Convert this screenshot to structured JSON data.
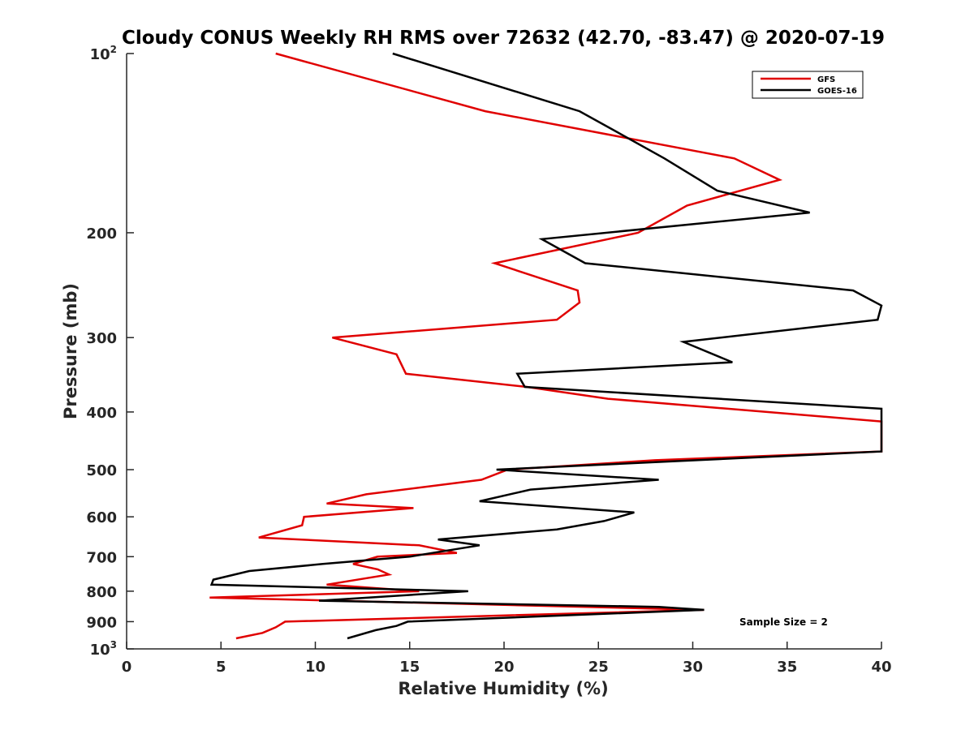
{
  "chart_data": {
    "type": "line",
    "title": "Cloudy CONUS Weekly RH RMS over 72632 (42.70, -83.47) @ 2020-07-19",
    "xlabel": "Relative Humidity (%)",
    "ylabel": "Pressure (mb)",
    "xlim": [
      0,
      40
    ],
    "ylim": [
      100,
      1000
    ],
    "yscale": "log",
    "y_reversed": true,
    "x_ticks": [
      "0",
      "5",
      "10",
      "15",
      "20",
      "25",
      "30",
      "35",
      "40"
    ],
    "y_ticks": [
      {
        "value": 100,
        "base": "10",
        "sup": "2"
      },
      {
        "value": 200,
        "label": "200"
      },
      {
        "value": 300,
        "label": "300"
      },
      {
        "value": 400,
        "label": "400"
      },
      {
        "value": 500,
        "label": "500"
      },
      {
        "value": 600,
        "label": "600"
      },
      {
        "value": 700,
        "label": "700"
      },
      {
        "value": 800,
        "label": "800"
      },
      {
        "value": 900,
        "label": "900"
      },
      {
        "value": 1000,
        "base": "10",
        "sup": "3"
      }
    ],
    "legend_position": "top-right",
    "annotation": "Sample Size = 2",
    "series": [
      {
        "name": "GFS",
        "color": "#e00000",
        "points": [
          [
            7.9,
            100
          ],
          [
            19.0,
            125
          ],
          [
            32.2,
            150
          ],
          [
            34.6,
            163
          ],
          [
            29.7,
            180
          ],
          [
            27.1,
            200
          ],
          [
            19.5,
            225
          ],
          [
            23.9,
            250
          ],
          [
            24.0,
            262
          ],
          [
            22.8,
            280
          ],
          [
            10.9,
            300
          ],
          [
            14.3,
            320
          ],
          [
            14.8,
            345
          ],
          [
            21.2,
            363
          ],
          [
            25.5,
            380
          ],
          [
            40.0,
            415
          ],
          [
            40.0,
            466
          ],
          [
            28.0,
            482
          ],
          [
            20.2,
            500
          ],
          [
            18.8,
            520
          ],
          [
            12.7,
            550
          ],
          [
            10.6,
            570
          ],
          [
            15.2,
            580
          ],
          [
            9.4,
            600
          ],
          [
            9.3,
            620
          ],
          [
            7.0,
            650
          ],
          [
            15.5,
            670
          ],
          [
            17.5,
            690
          ],
          [
            13.3,
            700
          ],
          [
            12.0,
            720
          ],
          [
            13.3,
            735
          ],
          [
            13.9,
            750
          ],
          [
            10.6,
            780
          ],
          [
            15.5,
            800
          ],
          [
            4.4,
            820
          ],
          [
            30.6,
            860
          ],
          [
            8.4,
            900
          ],
          [
            7.9,
            920
          ],
          [
            7.2,
            940
          ],
          [
            5.8,
            960
          ]
        ]
      },
      {
        "name": "GOES-16",
        "color": "#000000",
        "points": [
          [
            14.1,
            100
          ],
          [
            24.0,
            125
          ],
          [
            28.5,
            150
          ],
          [
            31.3,
            170
          ],
          [
            36.2,
            185
          ],
          [
            22.0,
            205
          ],
          [
            24.3,
            225
          ],
          [
            38.5,
            250
          ],
          [
            40.0,
            265
          ],
          [
            39.8,
            280
          ],
          [
            29.5,
            305
          ],
          [
            32.1,
            330
          ],
          [
            20.7,
            345
          ],
          [
            21.1,
            363
          ],
          [
            40.0,
            395
          ],
          [
            40.0,
            466
          ],
          [
            19.6,
            500
          ],
          [
            28.2,
            520
          ],
          [
            21.4,
            540
          ],
          [
            18.7,
            565
          ],
          [
            26.9,
            590
          ],
          [
            25.3,
            610
          ],
          [
            22.8,
            630
          ],
          [
            16.5,
            655
          ],
          [
            18.7,
            670
          ],
          [
            15.0,
            700
          ],
          [
            10.4,
            720
          ],
          [
            6.5,
            740
          ],
          [
            4.6,
            765
          ],
          [
            4.5,
            780
          ],
          [
            18.1,
            800
          ],
          [
            10.2,
            830
          ],
          [
            28.2,
            850
          ],
          [
            30.6,
            860
          ],
          [
            14.9,
            900
          ],
          [
            14.3,
            915
          ],
          [
            13.2,
            930
          ],
          [
            11.7,
            960
          ]
        ]
      }
    ]
  }
}
